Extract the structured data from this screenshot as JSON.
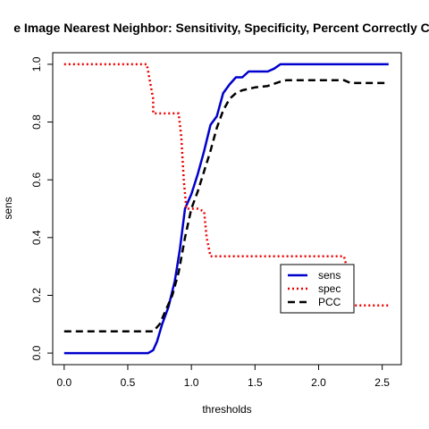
{
  "chart_data": {
    "type": "line",
    "title": "e Image Nearest Neighbor: Sensitivity, Specificity, Percent Correctly C",
    "xlabel": "thresholds",
    "ylabel": "sens",
    "xlim": [
      -0.09,
      2.65
    ],
    "ylim": [
      -0.04,
      1.04
    ],
    "xticks": [
      0.0,
      0.5,
      1.0,
      1.5,
      2.0,
      2.5
    ],
    "xtick_labels": [
      "0.0",
      "0.5",
      "1.0",
      "1.5",
      "2.0",
      "2.5"
    ],
    "yticks": [
      0.0,
      0.2,
      0.4,
      0.6,
      0.8,
      1.0
    ],
    "ytick_labels": [
      "0.0",
      "0.2",
      "0.4",
      "0.6",
      "0.8",
      "1.0"
    ],
    "grid": false,
    "legend_position": "bottom-right",
    "series": [
      {
        "name": "sens",
        "color": "#0000cc",
        "dash": "solid",
        "x": [
          0.0,
          0.66,
          0.7,
          0.73,
          0.77,
          0.82,
          0.87,
          0.91,
          0.95,
          1.0,
          1.05,
          1.1,
          1.15,
          1.2,
          1.25,
          1.3,
          1.35,
          1.4,
          1.45,
          1.5,
          1.55,
          1.6,
          1.65,
          1.7,
          1.75,
          2.55
        ],
        "y": [
          0.0,
          0.0,
          0.01,
          0.04,
          0.1,
          0.16,
          0.25,
          0.36,
          0.5,
          0.55,
          0.62,
          0.7,
          0.79,
          0.82,
          0.9,
          0.93,
          0.955,
          0.955,
          0.975,
          0.975,
          0.975,
          0.975,
          0.985,
          1.0,
          1.0,
          1.0
        ]
      },
      {
        "name": "spec",
        "color": "#ee0000",
        "dash": "dotted",
        "x": [
          0.0,
          0.65,
          0.67,
          0.7,
          0.7,
          0.9,
          0.92,
          0.94,
          0.96,
          1.05,
          1.1,
          1.12,
          1.15,
          2.2,
          2.22,
          2.25,
          2.55
        ],
        "y": [
          1.0,
          1.0,
          0.95,
          0.88,
          0.83,
          0.83,
          0.75,
          0.6,
          0.5,
          0.5,
          0.49,
          0.4,
          0.335,
          0.335,
          0.3,
          0.165,
          0.165
        ]
      },
      {
        "name": "PCC",
        "color": "#000000",
        "dash": "dashed",
        "x": [
          0.0,
          0.7,
          0.75,
          0.8,
          0.85,
          0.9,
          0.95,
          1.0,
          1.05,
          1.1,
          1.15,
          1.2,
          1.25,
          1.3,
          1.35,
          1.4,
          1.5,
          1.6,
          1.7,
          1.75,
          1.8,
          1.9,
          2.0,
          2.1,
          2.2,
          2.25,
          2.3,
          2.4,
          2.55
        ],
        "y": [
          0.075,
          0.075,
          0.1,
          0.15,
          0.2,
          0.28,
          0.4,
          0.5,
          0.56,
          0.63,
          0.7,
          0.78,
          0.84,
          0.88,
          0.9,
          0.91,
          0.92,
          0.925,
          0.94,
          0.945,
          0.945,
          0.945,
          0.945,
          0.945,
          0.945,
          0.935,
          0.935,
          0.935,
          0.935
        ]
      }
    ]
  }
}
